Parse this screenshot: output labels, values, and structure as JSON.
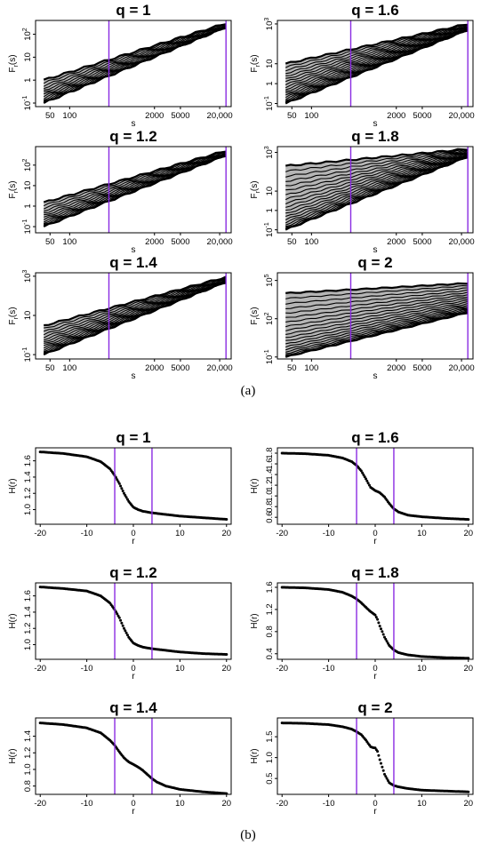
{
  "figure": {
    "panel_a_caption": "(a)",
    "panel_b_caption": "(b)"
  },
  "colors": {
    "marker": "#8a2be2",
    "data": "#000000",
    "axis": "#000000"
  },
  "chart_data": [
    {
      "type": "line",
      "panel": "a",
      "title": "q = 1",
      "xlabel": "s",
      "ylabel": "Fr(s)",
      "xscale": "log",
      "yscale": "log",
      "xlim": [
        30,
        30000
      ],
      "ylim": [
        0.07,
        400
      ],
      "xticks": [
        50,
        100,
        2000,
        5000,
        20000
      ],
      "xtick_labels": [
        "50",
        "100",
        "2000",
        "5000",
        "20,000"
      ],
      "yticks": [
        0.1,
        1,
        10,
        100
      ],
      "ytick_labels": [
        "10^-1",
        "1",
        "10",
        "10^2"
      ],
      "vlines": [
        400,
        25000
      ],
      "band": {
        "x": [
          40,
          25000
        ],
        "upper": [
          1.0,
          300
        ],
        "lower": [
          0.1,
          200
        ]
      },
      "n_series": 14
    },
    {
      "type": "line",
      "panel": "a",
      "title": "q = 1.6",
      "xlabel": "s",
      "ylabel": "Fr(s)",
      "xscale": "log",
      "yscale": "log",
      "xlim": [
        30,
        30000
      ],
      "ylim": [
        0.07,
        1500
      ],
      "xticks": [
        50,
        100,
        2000,
        5000,
        20000
      ],
      "xtick_labels": [
        "50",
        "100",
        "2000",
        "5000",
        "20,000"
      ],
      "yticks": [
        0.1,
        1,
        10,
        1000
      ],
      "ytick_labels": [
        "10^-1",
        "1",
        "10",
        "10^3"
      ],
      "vlines": [
        400,
        25000
      ],
      "band": {
        "x": [
          40,
          25000
        ],
        "upper": [
          10,
          1000
        ],
        "lower": [
          0.1,
          500
        ]
      },
      "n_series": 20
    },
    {
      "type": "line",
      "panel": "a",
      "title": "q = 1.2",
      "xlabel": "s",
      "ylabel": "Fr(s)",
      "xscale": "log",
      "yscale": "log",
      "xlim": [
        30,
        30000
      ],
      "ylim": [
        0.05,
        800
      ],
      "xticks": [
        50,
        100,
        2000,
        5000,
        20000
      ],
      "xtick_labels": [
        "50",
        "100",
        "2000",
        "5000",
        "20,000"
      ],
      "yticks": [
        0.1,
        1,
        10,
        100
      ],
      "ytick_labels": [
        "10^-1",
        "1",
        "10",
        "10^2"
      ],
      "vlines": [
        400,
        25000
      ],
      "band": {
        "x": [
          40,
          25000
        ],
        "upper": [
          1.5,
          500
        ],
        "lower": [
          0.1,
          300
        ]
      },
      "n_series": 14
    },
    {
      "type": "line",
      "panel": "a",
      "title": "q = 1.8",
      "xlabel": "s",
      "ylabel": "Fr(s)",
      "xscale": "log",
      "yscale": "log",
      "xlim": [
        30,
        30000
      ],
      "ylim": [
        0.07,
        2000
      ],
      "xticks": [
        50,
        100,
        2000,
        5000,
        20000
      ],
      "xtick_labels": [
        "50",
        "100",
        "2000",
        "5000",
        "20,000"
      ],
      "yticks": [
        0.1,
        1,
        10,
        1000
      ],
      "ytick_labels": [
        "10^-1",
        "1",
        "10",
        "10^3"
      ],
      "vlines": [
        400,
        25000
      ],
      "band": {
        "x": [
          40,
          25000
        ],
        "upper": [
          200,
          1500
        ],
        "lower": [
          0.1,
          600
        ]
      },
      "n_series": 20
    },
    {
      "type": "line",
      "panel": "a",
      "title": "q = 1.4",
      "xlabel": "s",
      "ylabel": "Fr(s)",
      "xscale": "log",
      "yscale": "log",
      "xlim": [
        30,
        30000
      ],
      "ylim": [
        0.06,
        1500
      ],
      "xticks": [
        50,
        100,
        2000,
        5000,
        20000
      ],
      "xtick_labels": [
        "50",
        "100",
        "2000",
        "5000",
        "20,000"
      ],
      "yticks": [
        0.1,
        10,
        1000
      ],
      "ytick_labels": [
        "10^-1",
        "10",
        "10^3"
      ],
      "vlines": [
        400,
        25000
      ],
      "band": {
        "x": [
          40,
          25000
        ],
        "upper": [
          3,
          900
        ],
        "lower": [
          0.1,
          500
        ]
      },
      "n_series": 16
    },
    {
      "type": "line",
      "panel": "a",
      "title": "q = 2",
      "xlabel": "s",
      "ylabel": "Fr(s)",
      "xscale": "log",
      "yscale": "log",
      "xlim": [
        30,
        30000
      ],
      "ylim": [
        0.07,
        400000
      ],
      "xticks": [
        50,
        100,
        2000,
        5000,
        20000
      ],
      "xtick_labels": [
        "50",
        "100",
        "2000",
        "5000",
        "20,000"
      ],
      "yticks": [
        0.1,
        100,
        100000
      ],
      "ytick_labels": [
        "10^-1",
        "10^2",
        "10^5"
      ],
      "vlines": [
        400,
        25000
      ],
      "band": {
        "x": [
          40,
          25000
        ],
        "upper": [
          10000,
          60000
        ],
        "lower": [
          0.1,
          300
        ]
      },
      "n_series": 20
    },
    {
      "type": "scatter",
      "panel": "b",
      "title": "q = 1",
      "xlabel": "r",
      "ylabel": "H(r)",
      "xlim": [
        -21,
        21
      ],
      "ylim": [
        0.82,
        1.76
      ],
      "xticks": [
        -20,
        -10,
        0,
        10,
        20
      ],
      "xtick_labels": [
        "-20",
        "-10",
        "0",
        "10",
        "20"
      ],
      "yticks": [
        1.0,
        1.2,
        1.4,
        1.6
      ],
      "ytick_labels": [
        "1.0",
        "1.2",
        "1.4",
        "1.6"
      ],
      "vlines": [
        -4,
        4
      ],
      "x": [
        -20,
        -15,
        -10,
        -7,
        -5,
        -4,
        -3,
        -2,
        -1,
        0,
        1,
        2,
        4,
        7,
        10,
        15,
        20
      ],
      "y": [
        1.71,
        1.69,
        1.65,
        1.59,
        1.5,
        1.42,
        1.32,
        1.2,
        1.1,
        1.03,
        1.0,
        0.98,
        0.96,
        0.94,
        0.92,
        0.9,
        0.88
      ]
    },
    {
      "type": "scatter",
      "panel": "b",
      "title": "q = 1.6",
      "xlabel": "r",
      "ylabel": "H(r)",
      "xlim": [
        -21,
        21
      ],
      "ylim": [
        0.47,
        1.9
      ],
      "xticks": [
        -20,
        -10,
        0,
        10,
        20
      ],
      "xtick_labels": [
        "-20",
        "-10",
        "0",
        "10",
        "20"
      ],
      "yticks": [
        0.6,
        0.8,
        1.0,
        1.2,
        1.4,
        1.6,
        1.8
      ],
      "ytick_labels": [
        "0.6",
        "0.8",
        "1.0",
        "1.2",
        "1.4",
        "1.6",
        "1.8"
      ],
      "vlines": [
        -4,
        4
      ],
      "x": [
        -20,
        -15,
        -10,
        -7,
        -5,
        -4,
        -3,
        -2,
        -1,
        0,
        1,
        2,
        3,
        4,
        5,
        7,
        10,
        15,
        20
      ],
      "y": [
        1.8,
        1.79,
        1.76,
        1.71,
        1.64,
        1.57,
        1.47,
        1.32,
        1.16,
        1.1,
        1.06,
        0.98,
        0.86,
        0.76,
        0.7,
        0.64,
        0.61,
        0.58,
        0.56
      ]
    },
    {
      "type": "scatter",
      "panel": "b",
      "title": "q = 1.2",
      "xlabel": "r",
      "ylabel": "H(r)",
      "xlim": [
        -21,
        21
      ],
      "ylim": [
        0.82,
        1.76
      ],
      "xticks": [
        -20,
        -10,
        0,
        10,
        20
      ],
      "xtick_labels": [
        "-20",
        "-10",
        "0",
        "10",
        "20"
      ],
      "yticks": [
        1.0,
        1.2,
        1.4,
        1.6
      ],
      "ytick_labels": [
        "1.0",
        "1.2",
        "1.4",
        "1.6"
      ],
      "vlines": [
        -4,
        4
      ],
      "x": [
        -20,
        -15,
        -10,
        -7,
        -5,
        -4,
        -3,
        -2,
        -1,
        0,
        1,
        2,
        4,
        7,
        10,
        15,
        20
      ],
      "y": [
        1.71,
        1.69,
        1.66,
        1.6,
        1.51,
        1.43,
        1.33,
        1.2,
        1.09,
        1.02,
        0.99,
        0.97,
        0.95,
        0.93,
        0.91,
        0.89,
        0.88
      ]
    },
    {
      "type": "scatter",
      "panel": "b",
      "title": "q = 1.8",
      "xlabel": "r",
      "ylabel": "H(r)",
      "xlim": [
        -21,
        21
      ],
      "ylim": [
        0.3,
        1.68
      ],
      "xticks": [
        -20,
        -10,
        0,
        10,
        20
      ],
      "xtick_labels": [
        "-20",
        "-10",
        "0",
        "10",
        "20"
      ],
      "yticks": [
        0.4,
        0.8,
        1.2,
        1.6
      ],
      "ytick_labels": [
        "0.4",
        "0.8",
        "1.2",
        "1.6"
      ],
      "vlines": [
        -4,
        4
      ],
      "x": [
        -20,
        -15,
        -10,
        -7,
        -5,
        -4,
        -3,
        -2,
        -1,
        0,
        0.5,
        1,
        2,
        3,
        4,
        5,
        7,
        10,
        15,
        20
      ],
      "y": [
        1.6,
        1.59,
        1.56,
        1.51,
        1.44,
        1.39,
        1.32,
        1.24,
        1.16,
        1.1,
        1.02,
        0.9,
        0.7,
        0.55,
        0.47,
        0.42,
        0.38,
        0.35,
        0.33,
        0.32
      ]
    },
    {
      "type": "scatter",
      "panel": "b",
      "title": "q = 1.4",
      "xlabel": "r",
      "ylabel": "H(r)",
      "xlim": [
        -21,
        21
      ],
      "ylim": [
        0.7,
        1.62
      ],
      "xticks": [
        -20,
        -10,
        0,
        10,
        20
      ],
      "xtick_labels": [
        "-20",
        "-10",
        "0",
        "10",
        "20"
      ],
      "yticks": [
        0.8,
        1.0,
        1.2,
        1.4
      ],
      "ytick_labels": [
        "0.8",
        "1.0",
        "1.2",
        "1.4"
      ],
      "vlines": [
        -4,
        4
      ],
      "x": [
        -20,
        -15,
        -10,
        -7,
        -5,
        -4,
        -3,
        -2,
        -1,
        0,
        1,
        2,
        3,
        4,
        5,
        7,
        10,
        15,
        20
      ],
      "y": [
        1.56,
        1.54,
        1.5,
        1.44,
        1.35,
        1.29,
        1.21,
        1.14,
        1.09,
        1.06,
        1.03,
        0.99,
        0.94,
        0.89,
        0.85,
        0.8,
        0.76,
        0.73,
        0.71
      ]
    },
    {
      "type": "scatter",
      "panel": "b",
      "title": "q = 2",
      "xlabel": "r",
      "ylabel": "H(r)",
      "xlim": [
        -21,
        21
      ],
      "ylim": [
        0.12,
        1.95
      ],
      "xticks": [
        -20,
        -10,
        0,
        10,
        20
      ],
      "xtick_labels": [
        "-20",
        "-10",
        "0",
        "10",
        "20"
      ],
      "yticks": [
        0.5,
        1.0,
        1.5
      ],
      "ytick_labels": [
        "0.5",
        "1.0",
        "1.5"
      ],
      "vlines": [
        -4,
        4
      ],
      "x": [
        -20,
        -15,
        -10,
        -7,
        -5,
        -4,
        -3,
        -2,
        -1,
        -0.5,
        0,
        0.5,
        1,
        2,
        3,
        4,
        5,
        7,
        10,
        15,
        20
      ],
      "y": [
        1.83,
        1.82,
        1.79,
        1.74,
        1.68,
        1.62,
        1.55,
        1.42,
        1.26,
        1.24,
        1.23,
        1.15,
        0.95,
        0.6,
        0.4,
        0.33,
        0.3,
        0.26,
        0.22,
        0.2,
        0.18
      ]
    }
  ]
}
